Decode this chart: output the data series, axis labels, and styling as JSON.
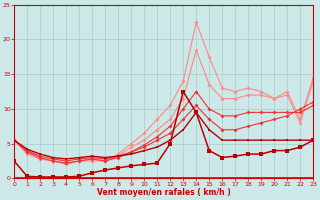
{
  "x": [
    0,
    1,
    2,
    3,
    4,
    5,
    6,
    7,
    8,
    9,
    10,
    11,
    12,
    13,
    14,
    15,
    16,
    17,
    18,
    19,
    20,
    21,
    22,
    23
  ],
  "line_spike": [
    2.5,
    0.3,
    0.2,
    0.2,
    0.2,
    0.3,
    0.8,
    1.2,
    1.5,
    1.8,
    2.0,
    2.2,
    5.0,
    12.5,
    9.5,
    4.0,
    3.0,
    3.2,
    3.5,
    3.5,
    4.0,
    4.0,
    4.5,
    5.5
  ],
  "line_dark2": [
    5.5,
    4.2,
    3.5,
    3.0,
    2.8,
    3.0,
    3.2,
    3.0,
    3.2,
    3.5,
    4.0,
    4.5,
    5.5,
    7.0,
    9.5,
    7.0,
    5.5,
    5.5,
    5.5,
    5.5,
    5.5,
    5.5,
    5.5,
    5.5
  ],
  "line_mid1": [
    5.5,
    4.0,
    3.2,
    2.8,
    2.5,
    2.8,
    3.0,
    2.8,
    3.2,
    3.8,
    4.5,
    5.5,
    6.5,
    8.5,
    10.5,
    8.5,
    7.0,
    7.0,
    7.5,
    8.0,
    8.5,
    9.0,
    10.0,
    11.0
  ],
  "line_mid2": [
    5.5,
    3.8,
    3.0,
    2.5,
    2.2,
    2.5,
    2.8,
    2.5,
    3.0,
    3.8,
    4.8,
    6.0,
    7.5,
    10.0,
    12.5,
    10.0,
    9.0,
    9.0,
    9.5,
    9.5,
    9.5,
    9.5,
    9.5,
    10.5
  ],
  "line_light1": [
    5.5,
    3.8,
    2.8,
    2.5,
    2.2,
    2.5,
    2.8,
    2.5,
    3.2,
    4.5,
    5.5,
    7.0,
    8.5,
    11.5,
    18.5,
    13.5,
    11.5,
    11.5,
    12.0,
    12.0,
    11.5,
    12.0,
    8.0,
    14.0
  ],
  "line_light2": [
    5.5,
    3.5,
    2.8,
    2.5,
    2.0,
    2.5,
    2.5,
    2.5,
    3.5,
    5.0,
    6.5,
    8.5,
    10.5,
    14.0,
    22.5,
    17.5,
    13.0,
    12.5,
    13.0,
    12.5,
    11.5,
    12.5,
    8.5,
    14.5
  ],
  "bg_color": "#cce8e8",
  "grid_color": "#aacccc",
  "line_color_dark": "#bb0000",
  "line_color_mid": "#ee3333",
  "line_color_light": "#ff8888",
  "xlabel": "Vent moyen/en rafales ( km/h )",
  "xlim": [
    0,
    23
  ],
  "ylim": [
    0,
    25
  ],
  "yticks": [
    0,
    5,
    10,
    15,
    20,
    25
  ],
  "xticks": [
    0,
    1,
    2,
    3,
    4,
    5,
    6,
    7,
    8,
    9,
    10,
    11,
    12,
    13,
    14,
    15,
    16,
    17,
    18,
    19,
    20,
    21,
    22,
    23
  ]
}
